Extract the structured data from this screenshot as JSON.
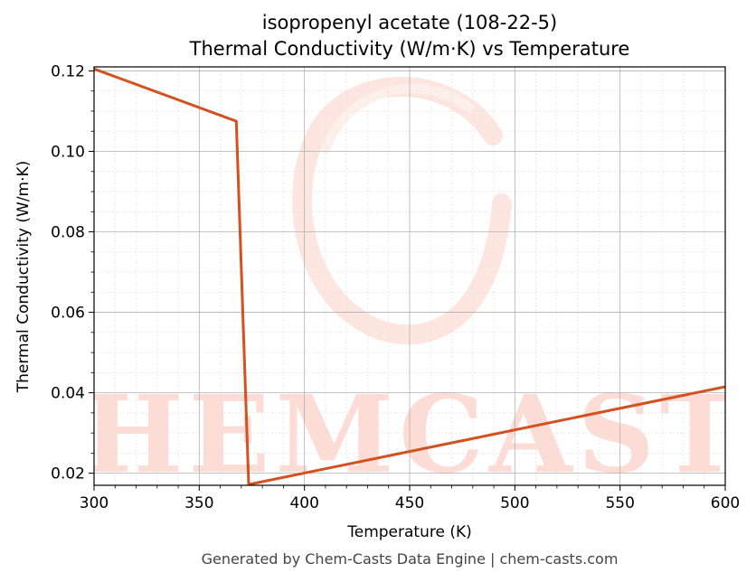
{
  "chart_data": {
    "type": "line",
    "title": "isopropenyl acetate (108-22-5)",
    "subtitle": "Thermal Conductivity (W/m·K) vs Temperature",
    "xlabel": "Temperature (K)",
    "ylabel": "Thermal Conductivity (W/m·K)",
    "xlim": [
      300,
      600
    ],
    "ylim": [
      0.017,
      0.121
    ],
    "x_ticks": [
      300,
      350,
      400,
      450,
      500,
      550,
      600
    ],
    "x_tick_labels": [
      "300",
      "350",
      "400",
      "450",
      "500",
      "550",
      "600"
    ],
    "y_ticks": [
      0.02,
      0.04,
      0.06,
      0.08,
      0.1,
      0.12
    ],
    "y_tick_labels": [
      "0.02",
      "0.04",
      "0.06",
      "0.08",
      "0.10",
      "0.12"
    ],
    "grid": true,
    "minor_grid": true,
    "line_color": "#d4501f",
    "series": [
      {
        "x": [
          300,
          367.6,
          373.5,
          600
        ],
        "y": [
          0.1205,
          0.1075,
          0.0172,
          0.0415
        ]
      }
    ]
  },
  "watermark": {
    "text": "CHEMCASTS",
    "color": "#fcdcd4"
  },
  "footer": "Generated by Chem-Casts Data Engine | chem-casts.com"
}
